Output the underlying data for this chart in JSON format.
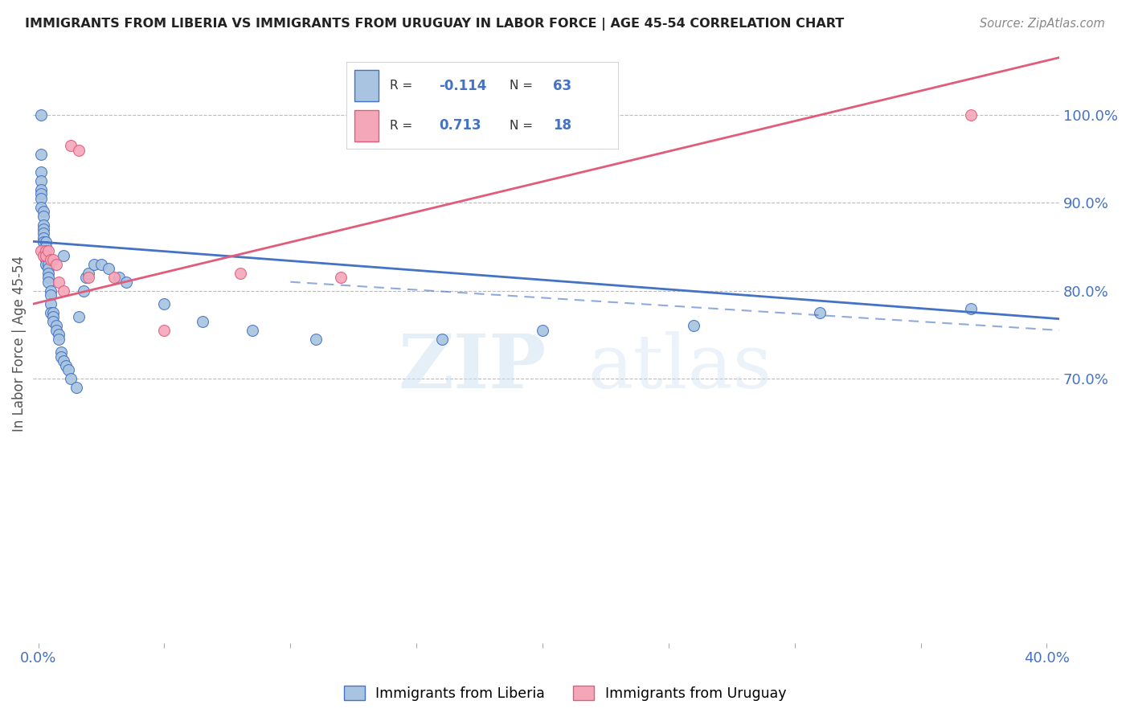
{
  "title": "IMMIGRANTS FROM LIBERIA VS IMMIGRANTS FROM URUGUAY IN LABOR FORCE | AGE 45-54 CORRELATION CHART",
  "source": "Source: ZipAtlas.com",
  "ylabel": "In Labor Force | Age 45-54",
  "xlim": [
    -0.002,
    0.405
  ],
  "ylim": [
    0.4,
    1.08
  ],
  "xtick_pos": [
    0.0,
    0.05,
    0.1,
    0.15,
    0.2,
    0.25,
    0.3,
    0.35,
    0.4
  ],
  "xticklabels": [
    "0.0%",
    "",
    "",
    "",
    "",
    "",
    "",
    "",
    "40.0%"
  ],
  "yticks_right": [
    0.7,
    0.8,
    0.9,
    1.0
  ],
  "ytick_labels_right": [
    "70.0%",
    "80.0%",
    "90.0%",
    "100.0%"
  ],
  "legend_liberia": "Immigrants from Liberia",
  "legend_uruguay": "Immigrants from Uruguay",
  "R_liberia": "-0.114",
  "N_liberia": "63",
  "R_uruguay": "0.713",
  "N_uruguay": "18",
  "color_liberia_fill": "#a8c4e0",
  "color_liberia_edge": "#4472c4",
  "color_uruguay_fill": "#f4a7b9",
  "color_uruguay_edge": "#e05c7a",
  "background_color": "#ffffff",
  "grid_color": "#bbbbbb",
  "liberia_x": [
    0.001,
    0.001,
    0.001,
    0.001,
    0.001,
    0.001,
    0.001,
    0.001,
    0.002,
    0.002,
    0.002,
    0.002,
    0.002,
    0.002,
    0.002,
    0.003,
    0.003,
    0.003,
    0.003,
    0.003,
    0.003,
    0.004,
    0.004,
    0.004,
    0.004,
    0.004,
    0.005,
    0.005,
    0.005,
    0.005,
    0.006,
    0.006,
    0.006,
    0.007,
    0.007,
    0.008,
    0.008,
    0.009,
    0.009,
    0.01,
    0.011,
    0.012,
    0.013,
    0.015,
    0.016,
    0.018,
    0.019,
    0.02,
    0.022,
    0.025,
    0.028,
    0.032,
    0.035,
    0.05,
    0.065,
    0.085,
    0.11,
    0.16,
    0.2,
    0.26,
    0.31,
    0.37,
    0.01
  ],
  "liberia_y": [
    1.0,
    0.955,
    0.935,
    0.925,
    0.915,
    0.91,
    0.905,
    0.895,
    0.89,
    0.885,
    0.875,
    0.87,
    0.865,
    0.86,
    0.855,
    0.855,
    0.85,
    0.845,
    0.84,
    0.835,
    0.83,
    0.83,
    0.825,
    0.82,
    0.815,
    0.81,
    0.8,
    0.795,
    0.785,
    0.775,
    0.775,
    0.77,
    0.765,
    0.76,
    0.755,
    0.75,
    0.745,
    0.73,
    0.725,
    0.72,
    0.715,
    0.71,
    0.7,
    0.69,
    0.77,
    0.8,
    0.815,
    0.82,
    0.83,
    0.83,
    0.825,
    0.815,
    0.81,
    0.785,
    0.765,
    0.755,
    0.745,
    0.745,
    0.755,
    0.76,
    0.775,
    0.78,
    0.84
  ],
  "uruguay_x": [
    0.001,
    0.002,
    0.003,
    0.003,
    0.004,
    0.005,
    0.006,
    0.007,
    0.008,
    0.01,
    0.013,
    0.016,
    0.02,
    0.03,
    0.05,
    0.08,
    0.12,
    0.37
  ],
  "uruguay_y": [
    0.845,
    0.84,
    0.845,
    0.84,
    0.845,
    0.835,
    0.835,
    0.83,
    0.81,
    0.8,
    0.965,
    0.96,
    0.815,
    0.815,
    0.755,
    0.82,
    0.815,
    1.0
  ],
  "line_blue_x0": -0.002,
  "line_blue_x1": 0.405,
  "line_blue_y0": 0.856,
  "line_blue_y1": 0.768,
  "line_pink_x0": -0.002,
  "line_pink_x1": 0.405,
  "line_pink_y0": 0.785,
  "line_pink_y1": 1.065,
  "watermark_zip": "ZIP",
  "watermark_atlas": "atlas"
}
